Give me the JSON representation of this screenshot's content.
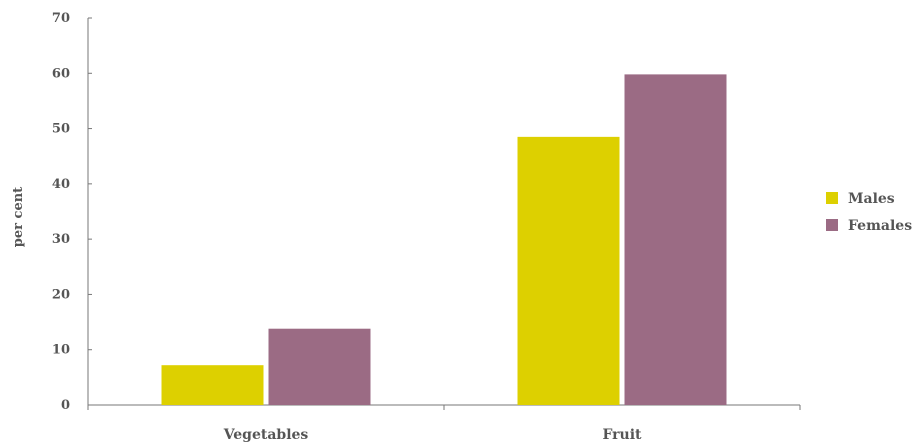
{
  "chart_data": {
    "type": "bar",
    "categories": [
      "Vegetables",
      "Fruit"
    ],
    "series": [
      {
        "name": "Males",
        "color": "#DDD000",
        "values": [
          7.2,
          48.5
        ]
      },
      {
        "name": "Females",
        "color": "#9B6B84",
        "values": [
          13.8,
          59.8
        ]
      }
    ],
    "ylabel": "per cent",
    "xlabel": "",
    "ylim": [
      0,
      70
    ],
    "yticks": [
      0,
      10,
      20,
      30,
      40,
      50,
      60,
      70
    ],
    "grid": false,
    "legend_position": "right"
  }
}
